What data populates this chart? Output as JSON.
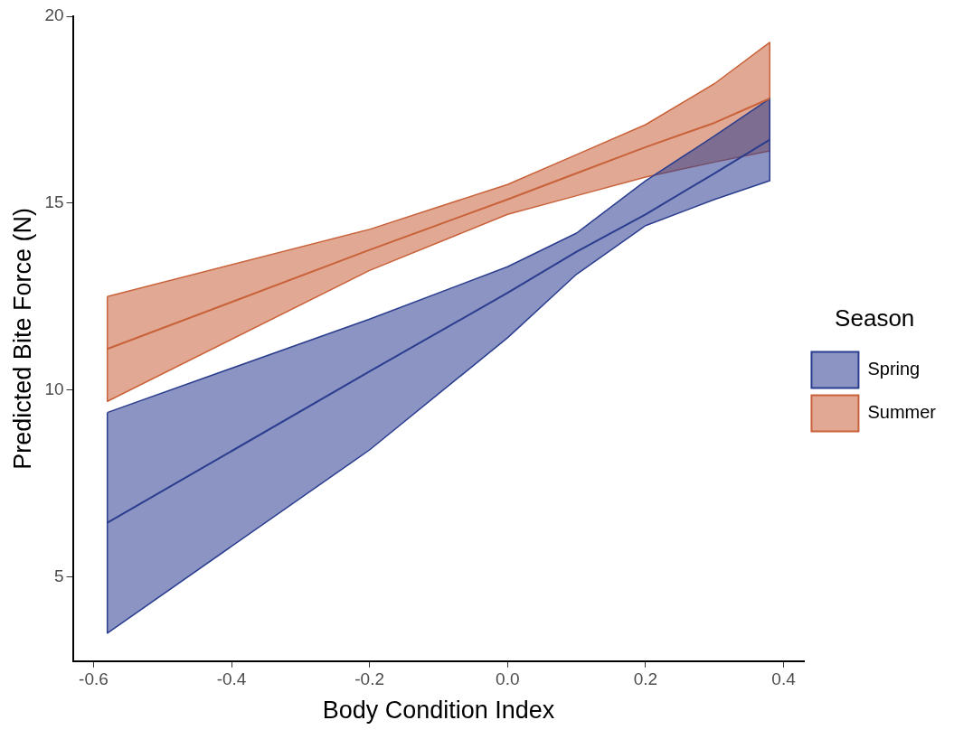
{
  "chart_data": {
    "type": "line",
    "xlabel": "Body Condition Index",
    "ylabel": "Predicted Bite Force (N)",
    "legend_title": "Season",
    "legend": "right",
    "grid": false,
    "marker": "none",
    "line_style": "solid",
    "xlim": [
      -0.63,
      0.43
    ],
    "xticks": [
      {
        "value": -0.6,
        "label": "-0.6"
      },
      {
        "value": -0.4,
        "label": "-0.4"
      },
      {
        "value": -0.2,
        "label": "-0.2"
      },
      {
        "value": 0,
        "label": "0.0"
      },
      {
        "value": 0.2,
        "label": "0.2"
      },
      {
        "value": 0.4,
        "label": "0.4"
      }
    ],
    "ylim": [
      2.75,
      20
    ],
    "yticks": [
      5,
      10,
      15,
      20
    ],
    "series": [
      {
        "name": "Spring",
        "color": "#2b3d8f",
        "x": [
          -0.58,
          -0.2,
          0,
          0.1,
          0.2,
          0.3,
          0.38
        ],
        "values": [
          6.45,
          10.5,
          12.6,
          13.7,
          14.7,
          15.8,
          16.7
        ],
        "lower": [
          3.5,
          8.4,
          11.4,
          13.1,
          14.4,
          15.1,
          15.6
        ],
        "upper": [
          9.4,
          11.9,
          13.3,
          14.2,
          15.6,
          16.8,
          17.8
        ]
      },
      {
        "name": "Summer",
        "color": "#c9623a",
        "x": [
          -0.58,
          -0.2,
          0,
          0.1,
          0.2,
          0.3,
          0.38
        ],
        "values": [
          11.1,
          13.75,
          15.1,
          15.8,
          16.5,
          17.15,
          17.8
        ],
        "lower": [
          9.7,
          13.2,
          14.7,
          15.2,
          15.7,
          16.1,
          16.4
        ],
        "upper": [
          12.5,
          14.3,
          15.5,
          16.3,
          17.1,
          18.2,
          19.3
        ]
      }
    ]
  }
}
